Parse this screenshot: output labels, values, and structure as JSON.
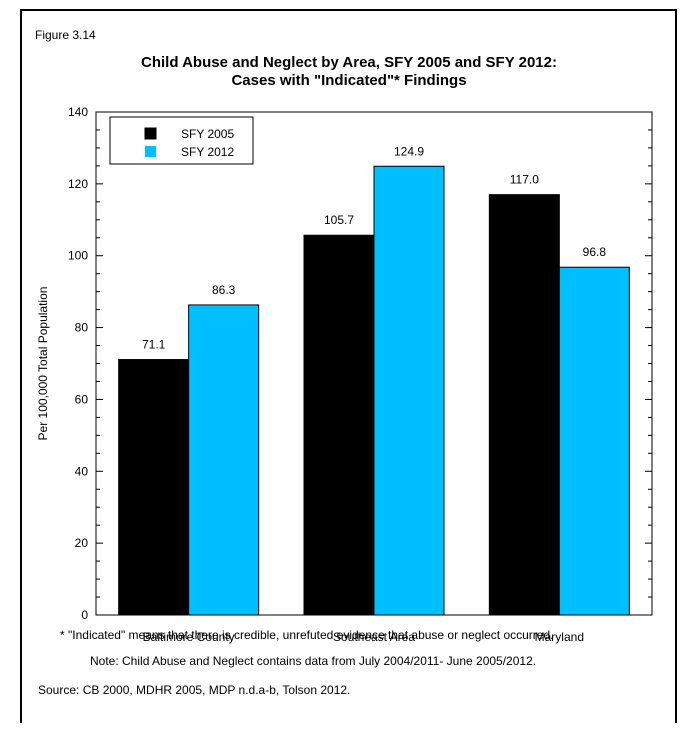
{
  "figure_label": "Figure 3.14",
  "footnote": "* \"Indicated\" means that there is credible, unrefuted evidence that abuse or neglect occurred.",
  "note": "Note: Child Abuse and Neglect contains data from July 2004/2011- June 2005/2012.",
  "source": "Source: CB 2000, MDHR 2005, MDP n.d.a-b, Tolson 2012.",
  "chart_data": {
    "type": "bar",
    "title": "Child Abuse and Neglect by Area, SFY 2005 and SFY 2012:",
    "subtitle": "Cases with \"Indicated\"* Findings",
    "xlabel": "",
    "ylabel": "Per 100,000 Total Population",
    "categories": [
      "Baltimore County",
      "Southeast Area",
      "Maryland"
    ],
    "series": [
      {
        "name": "SFY 2005",
        "color": "#000000",
        "values": [
          71.1,
          105.7,
          117.0
        ],
        "labels": [
          "71.1",
          "105.7",
          "117.0"
        ]
      },
      {
        "name": "SFY 2012",
        "color": "#00BFFF",
        "values": [
          86.3,
          124.9,
          96.8
        ],
        "labels": [
          "86.3",
          "124.9",
          "96.8"
        ]
      }
    ],
    "ylim": [
      0,
      140
    ],
    "yticks": [
      0,
      20,
      40,
      60,
      80,
      100,
      120,
      140
    ],
    "yminor_step": 5,
    "grid": false,
    "legend_position": "top-left",
    "data_labels": true
  }
}
